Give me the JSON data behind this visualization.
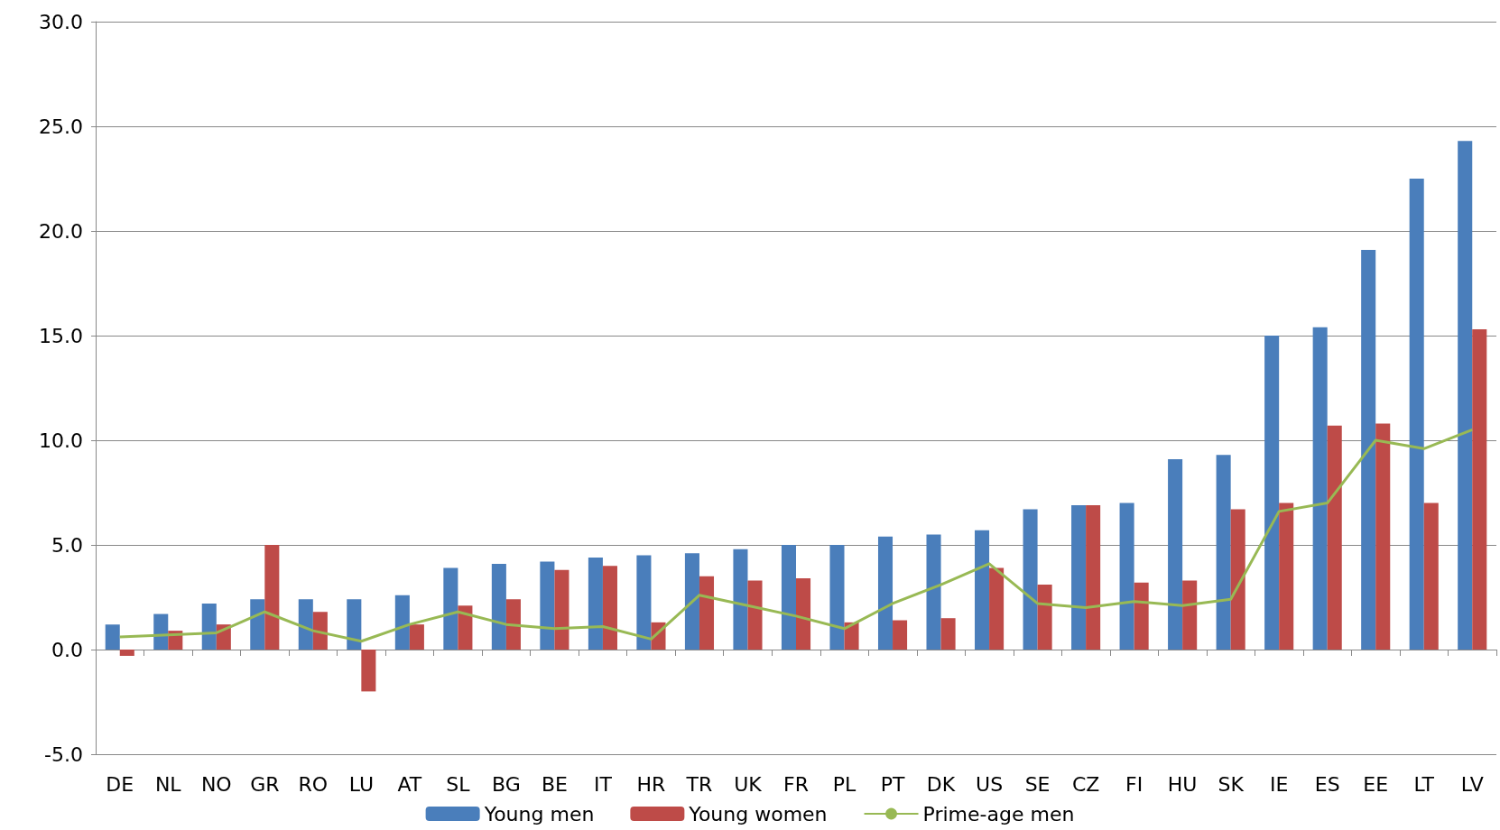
{
  "chart_data": {
    "type": "bar",
    "categories": [
      "DE",
      "NL",
      "NO",
      "GR",
      "RO",
      "LU",
      "AT",
      "SL",
      "BG",
      "BE",
      "IT",
      "HR",
      "TR",
      "UK",
      "FR",
      "PL",
      "PT",
      "DK",
      "US",
      "SE",
      "CZ",
      "FI",
      "HU",
      "SK",
      "IE",
      "ES",
      "EE",
      "LT",
      "LV"
    ],
    "series": [
      {
        "name": "Young men",
        "color": "#4a7ebb",
        "values": [
          1.2,
          1.7,
          2.2,
          2.4,
          2.4,
          2.4,
          2.6,
          3.9,
          4.1,
          4.2,
          4.4,
          4.5,
          4.6,
          4.8,
          5.0,
          5.0,
          5.4,
          5.5,
          5.7,
          6.7,
          6.9,
          7.0,
          9.1,
          9.3,
          15.0,
          15.4,
          19.1,
          22.5,
          24.3
        ]
      },
      {
        "name": "Young women",
        "color": "#be4b48",
        "values": [
          -0.3,
          0.9,
          1.2,
          5.0,
          1.8,
          -2.0,
          1.2,
          2.1,
          2.4,
          3.8,
          4.0,
          1.3,
          3.5,
          3.3,
          3.4,
          1.3,
          1.4,
          1.5,
          3.9,
          3.1,
          6.9,
          3.2,
          3.3,
          6.7,
          7.0,
          10.7,
          10.8,
          7.0,
          15.3
        ]
      },
      {
        "name": "Prime-age men",
        "type": "line",
        "color": "#98b954",
        "values": [
          0.6,
          0.7,
          0.8,
          1.8,
          0.9,
          0.4,
          1.2,
          1.8,
          1.2,
          1.0,
          1.1,
          0.5,
          2.6,
          2.1,
          1.6,
          1.0,
          2.2,
          3.1,
          4.1,
          2.2,
          2.0,
          2.3,
          2.1,
          2.4,
          6.6,
          7.0,
          10.0,
          9.6,
          10.5
        ]
      }
    ],
    "ylim": [
      -5,
      30
    ],
    "yticks": [
      {
        "value": -5,
        "label": "-5.0"
      },
      {
        "value": 0,
        "label": "0.0"
      },
      {
        "value": 5,
        "label": "5.0"
      },
      {
        "value": 10,
        "label": "10.0"
      },
      {
        "value": 15,
        "label": "15.0"
      },
      {
        "value": 20,
        "label": "20.0"
      },
      {
        "value": 25,
        "label": "25.0"
      },
      {
        "value": 30,
        "label": "30.0"
      }
    ],
    "grid": "y",
    "legend": "bottom",
    "marker": "none"
  }
}
